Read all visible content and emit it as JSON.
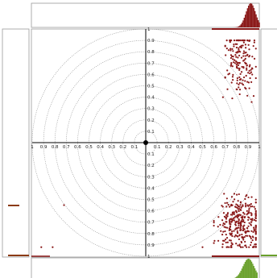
{
  "chart_data": {
    "type": "scatter",
    "title": "",
    "xlabel": "",
    "ylabel": "",
    "xlim": [
      -1,
      1
    ],
    "ylim": [
      -1,
      1
    ],
    "grid": "concentric circles at radius 0.1 to 1.0",
    "axis_ticks": [
      "0.1",
      "0.2",
      "0.3",
      "0.4",
      "0.5",
      "0.6",
      "0.7",
      "0.8",
      "0.9",
      "1"
    ],
    "y_axis_tick_labels": [
      "1",
      "0.9",
      "0.8",
      "0.7",
      "0.6",
      "0.5",
      "0.4",
      "0.3",
      "0.2",
      "0.1",
      "0.1",
      "0.2",
      "0.3",
      "0.4",
      "0.5",
      "0.6",
      "0.7",
      "0.8",
      "0.9",
      "1"
    ],
    "x_axis_tick_labels": [
      "1",
      "0.9",
      "0.8",
      "0.7",
      "0.6",
      "0.5",
      "0.4",
      "0.3",
      "0.2",
      "0.1",
      "0.1",
      "0.2",
      "0.3",
      "0.4",
      "0.5",
      "0.6",
      "0.7",
      "0.8",
      "0.9",
      "1"
    ],
    "origin": [
      0,
      0
    ],
    "series": [
      {
        "color": "#8b1a1a",
        "clusters": [
          {
            "x_range": [
              0.7,
              0.97
            ],
            "y_range": [
              0.35,
              0.9
            ],
            "x_center": 0.84,
            "y_center": 0.72,
            "approx_points": 170
          },
          {
            "x_range": [
              0.6,
              0.97
            ],
            "y_range": [
              -0.92,
              -0.45
            ],
            "x_center": 0.83,
            "y_center": -0.72,
            "approx_points": 330
          }
        ],
        "outliers": [
          {
            "x": -0.72,
            "y": -0.55
          },
          {
            "x": -0.92,
            "y": -0.92
          },
          {
            "x": -0.82,
            "y": -0.92
          },
          {
            "x": 0.5,
            "y": -0.92
          },
          {
            "x": 0.68,
            "y": 0.4
          },
          {
            "x": 0.72,
            "y": 0.47
          }
        ]
      }
    ],
    "marginal_histograms": {
      "top": {
        "color": "#8b1a1a",
        "peak_x": 0.92
      },
      "bottom": {
        "color": "#6aa02c",
        "peak_x": 0.9
      },
      "left": {
        "color": "#8b3a10"
      }
    }
  }
}
